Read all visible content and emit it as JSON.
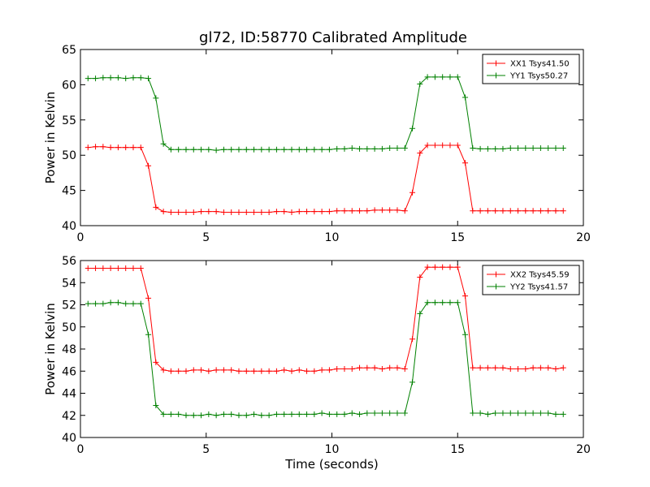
{
  "chart_data": [
    {
      "type": "line",
      "title": "gl72, ID:58770 Calibrated Amplitude",
      "xlabel": "",
      "ylabel": "Power in Kelvin",
      "xlim": [
        0,
        20
      ],
      "ylim": [
        40,
        65
      ],
      "xticks": [
        "0",
        "5",
        "10",
        "15",
        "20"
      ],
      "yticks": [
        "40",
        "45",
        "50",
        "55",
        "60",
        "65"
      ],
      "grid": false,
      "legend": "top-right",
      "x": [
        0.3,
        0.6,
        0.9,
        1.2,
        1.5,
        1.8,
        2.1,
        2.4,
        2.7,
        3.0,
        3.3,
        3.6,
        3.9,
        4.2,
        4.5,
        4.8,
        5.1,
        5.4,
        5.7,
        6.0,
        6.3,
        6.6,
        6.9,
        7.2,
        7.5,
        7.8,
        8.1,
        8.4,
        8.7,
        9.0,
        9.3,
        9.6,
        9.9,
        10.2,
        10.5,
        10.8,
        11.1,
        11.4,
        11.7,
        12.0,
        12.3,
        12.6,
        12.9,
        13.2,
        13.5,
        13.8,
        14.1,
        14.4,
        14.7,
        15.0,
        15.3,
        15.6,
        15.9,
        16.2,
        16.5,
        16.8,
        17.1,
        17.4,
        17.7,
        18.0,
        18.3,
        18.6,
        18.9,
        19.2
      ],
      "series": [
        {
          "name": "XX1 Tsys41.50",
          "color": "#ff0000",
          "values": [
            51.1,
            51.2,
            51.2,
            51.1,
            51.1,
            51.1,
            51.1,
            51.1,
            48.5,
            42.6,
            42.0,
            41.9,
            41.9,
            41.9,
            41.9,
            42.0,
            42.0,
            42.0,
            41.9,
            41.9,
            41.9,
            41.9,
            41.9,
            41.9,
            41.9,
            42.0,
            42.0,
            41.9,
            42.0,
            42.0,
            42.0,
            42.0,
            42.0,
            42.1,
            42.1,
            42.1,
            42.1,
            42.1,
            42.2,
            42.2,
            42.2,
            42.2,
            42.1,
            44.7,
            50.3,
            51.4,
            51.4,
            51.4,
            51.4,
            51.4,
            48.9,
            42.1,
            42.1,
            42.1,
            42.1,
            42.1,
            42.1,
            42.1,
            42.1,
            42.1,
            42.1,
            42.1,
            42.1,
            42.1
          ]
        },
        {
          "name": "YY1 Tsys50.27",
          "color": "#008000",
          "values": [
            60.9,
            60.9,
            61.0,
            61.0,
            61.0,
            60.9,
            61.0,
            61.0,
            60.9,
            58.1,
            51.6,
            50.8,
            50.8,
            50.8,
            50.8,
            50.8,
            50.8,
            50.7,
            50.8,
            50.8,
            50.8,
            50.8,
            50.8,
            50.8,
            50.8,
            50.8,
            50.8,
            50.8,
            50.8,
            50.8,
            50.8,
            50.8,
            50.8,
            50.9,
            50.9,
            51.0,
            50.9,
            50.9,
            50.9,
            50.9,
            51.0,
            51.0,
            51.0,
            53.8,
            60.1,
            61.1,
            61.1,
            61.1,
            61.1,
            61.1,
            58.2,
            51.0,
            50.9,
            50.9,
            50.9,
            50.9,
            51.0,
            51.0,
            51.0,
            51.0,
            51.0,
            51.0,
            51.0,
            51.0
          ]
        }
      ]
    },
    {
      "type": "line",
      "title": "",
      "xlabel": "Time (seconds)",
      "ylabel": "Power in Kelvin",
      "xlim": [
        0,
        20
      ],
      "ylim": [
        40,
        56
      ],
      "xticks": [
        "0",
        "5",
        "10",
        "15",
        "20"
      ],
      "yticks": [
        "40",
        "42",
        "44",
        "46",
        "48",
        "50",
        "52",
        "54",
        "56"
      ],
      "grid": false,
      "legend": "top-right",
      "x": [
        0.3,
        0.6,
        0.9,
        1.2,
        1.5,
        1.8,
        2.1,
        2.4,
        2.7,
        3.0,
        3.3,
        3.6,
        3.9,
        4.2,
        4.5,
        4.8,
        5.1,
        5.4,
        5.7,
        6.0,
        6.3,
        6.6,
        6.9,
        7.2,
        7.5,
        7.8,
        8.1,
        8.4,
        8.7,
        9.0,
        9.3,
        9.6,
        9.9,
        10.2,
        10.5,
        10.8,
        11.1,
        11.4,
        11.7,
        12.0,
        12.3,
        12.6,
        12.9,
        13.2,
        13.5,
        13.8,
        14.1,
        14.4,
        14.7,
        15.0,
        15.3,
        15.6,
        15.9,
        16.2,
        16.5,
        16.8,
        17.1,
        17.4,
        17.7,
        18.0,
        18.3,
        18.6,
        18.9,
        19.2
      ],
      "series": [
        {
          "name": "XX2 Tsys45.59",
          "color": "#ff0000",
          "values": [
            55.3,
            55.3,
            55.3,
            55.3,
            55.3,
            55.3,
            55.3,
            55.3,
            52.6,
            46.8,
            46.1,
            46.0,
            46.0,
            46.0,
            46.1,
            46.1,
            46.0,
            46.1,
            46.1,
            46.1,
            46.0,
            46.0,
            46.0,
            46.0,
            46.0,
            46.0,
            46.1,
            46.0,
            46.1,
            46.0,
            46.0,
            46.1,
            46.1,
            46.2,
            46.2,
            46.2,
            46.3,
            46.3,
            46.3,
            46.2,
            46.3,
            46.3,
            46.2,
            48.9,
            54.5,
            55.4,
            55.4,
            55.4,
            55.4,
            55.4,
            52.8,
            46.3,
            46.3,
            46.3,
            46.3,
            46.3,
            46.2,
            46.2,
            46.2,
            46.3,
            46.3,
            46.3,
            46.2,
            46.3
          ]
        },
        {
          "name": "YY2 Tsys41.57",
          "color": "#008000",
          "values": [
            52.1,
            52.1,
            52.1,
            52.2,
            52.2,
            52.1,
            52.1,
            52.1,
            49.3,
            42.9,
            42.1,
            42.1,
            42.1,
            42.0,
            42.0,
            42.0,
            42.1,
            42.0,
            42.1,
            42.1,
            42.0,
            42.0,
            42.1,
            42.0,
            42.0,
            42.1,
            42.1,
            42.1,
            42.1,
            42.1,
            42.1,
            42.2,
            42.1,
            42.1,
            42.1,
            42.2,
            42.1,
            42.2,
            42.2,
            42.2,
            42.2,
            42.2,
            42.2,
            45.0,
            51.2,
            52.2,
            52.2,
            52.2,
            52.2,
            52.2,
            49.3,
            42.2,
            42.2,
            42.1,
            42.2,
            42.2,
            42.2,
            42.2,
            42.2,
            42.2,
            42.2,
            42.2,
            42.1,
            42.1
          ]
        }
      ]
    }
  ]
}
